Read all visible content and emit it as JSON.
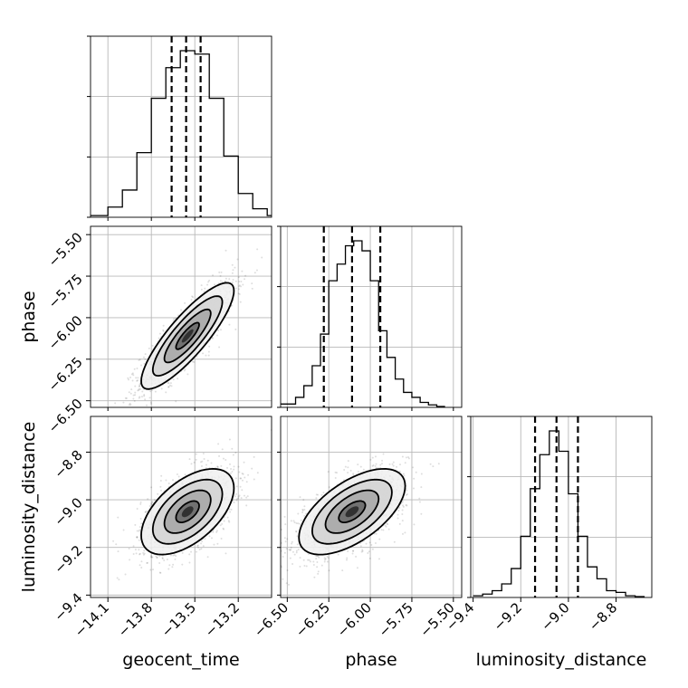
{
  "chart_data": {
    "type": "corner",
    "parameters": [
      "geocent_time",
      "phase",
      "luminosity_distance"
    ],
    "axes": {
      "geocent_time": {
        "label": "geocent_time",
        "range": [
          -14.22,
          -12.97
        ],
        "ticks": [
          -14.1,
          -13.8,
          -13.5,
          -13.2
        ],
        "tick_labels": [
          "−14.1",
          "−13.8",
          "−13.5",
          "−13.2"
        ]
      },
      "phase": {
        "label": "phase",
        "range": [
          -6.54,
          -5.45
        ],
        "ticks": [
          -6.5,
          -6.25,
          -6.0,
          -5.75,
          -5.5
        ],
        "tick_labels": [
          "−6.50",
          "−6.25",
          "−6.00",
          "−5.75",
          "−5.50"
        ]
      },
      "luminosity_distance": {
        "label": "luminosity_distance",
        "range": [
          -9.41,
          -8.65
        ],
        "ticks": [
          -9.4,
          -9.2,
          -9.0,
          -8.8
        ],
        "tick_labels": [
          "−9.4",
          "−9.2",
          "−9.0",
          "−8.8"
        ]
      }
    },
    "marginals": [
      {
        "parameter": "geocent_time",
        "bin_edges": [
          -14.22,
          -14.1,
          -14.0,
          -13.9,
          -13.8,
          -13.7,
          -13.6,
          -13.5,
          -13.4,
          -13.3,
          -13.2,
          -13.1,
          -13.0,
          -12.97
        ],
        "density": [
          0.01,
          0.06,
          0.16,
          0.38,
          0.7,
          0.88,
          0.98,
          0.96,
          0.7,
          0.36,
          0.14,
          0.05,
          0.01
        ],
        "quantiles": [
          -13.66,
          -13.56,
          -13.46
        ]
      },
      {
        "parameter": "phase",
        "bin_edges": [
          -6.54,
          -6.45,
          -6.4,
          -6.35,
          -6.3,
          -6.25,
          -6.2,
          -6.15,
          -6.1,
          -6.05,
          -6.0,
          -5.95,
          -5.9,
          -5.85,
          -5.8,
          -5.75,
          -5.7,
          -5.65,
          -5.6,
          -5.55
        ],
        "density": [
          0.02,
          0.06,
          0.13,
          0.25,
          0.44,
          0.76,
          0.86,
          0.97,
          1.0,
          0.94,
          0.76,
          0.46,
          0.3,
          0.17,
          0.09,
          0.06,
          0.03,
          0.015,
          0.005
        ],
        "quantiles": [
          -6.28,
          -6.11,
          -5.94
        ]
      },
      {
        "parameter": "luminosity_distance",
        "bin_edges": [
          -9.4,
          -9.36,
          -9.32,
          -9.28,
          -9.24,
          -9.2,
          -9.16,
          -9.12,
          -9.08,
          -9.04,
          -9.0,
          -8.96,
          -8.92,
          -8.88,
          -8.84,
          -8.8,
          -8.76,
          -8.72,
          -8.68
        ],
        "density": [
          0.01,
          0.02,
          0.04,
          0.08,
          0.17,
          0.36,
          0.64,
          0.84,
          0.98,
          0.86,
          0.61,
          0.36,
          0.18,
          0.11,
          0.04,
          0.03,
          0.01,
          0.005
        ],
        "quantiles": [
          -9.14,
          -9.05,
          -8.96
        ]
      }
    ],
    "pairs": [
      {
        "x": "geocent_time",
        "y": "phase",
        "center": [
          -13.55,
          -6.11
        ],
        "sigma": [
          0.16,
          0.16
        ],
        "correlation": 0.85
      },
      {
        "x": "geocent_time",
        "y": "luminosity_distance",
        "center": [
          -13.55,
          -9.05
        ],
        "sigma": [
          0.16,
          0.09
        ],
        "correlation": 0.55
      },
      {
        "x": "phase",
        "y": "luminosity_distance",
        "center": [
          -6.11,
          -9.05
        ],
        "sigma": [
          0.16,
          0.09
        ],
        "correlation": 0.6
      }
    ],
    "contour_levels_sigma": [
      0.5,
      1.0,
      1.5,
      2.0
    ],
    "grid": true,
    "legend": "none"
  }
}
